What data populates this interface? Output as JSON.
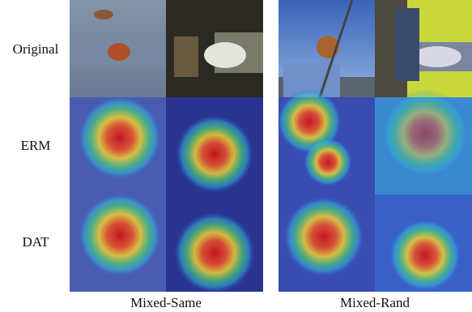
{
  "row_labels": [
    "Original",
    "ERM",
    "DAT"
  ],
  "column_labels": [
    "Mixed-Same",
    "Mixed-Rand"
  ]
}
